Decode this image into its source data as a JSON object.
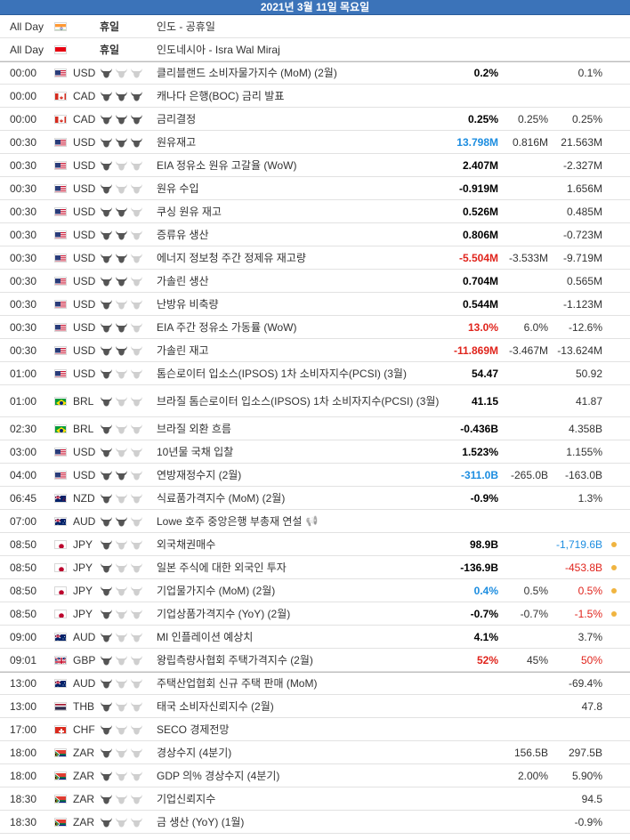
{
  "date_header": "2021년 3월 11일 목요일",
  "colors": {
    "header_bg": "#3b73b9",
    "bull_on": "#555555",
    "bull_off": "#cfcfcf",
    "positive": "#1c8de0",
    "negative": "#e0241c",
    "revision_dot": "#f0b440"
  },
  "rows": [
    {
      "time": "All Day",
      "flag": "IN",
      "holiday": "휴일",
      "event": "인도 - 공휴일"
    },
    {
      "time": "All Day",
      "flag": "ID",
      "holiday": "휴일",
      "event": "인도네시아 - Isra Wal Miraj"
    },
    {
      "time": "00:00",
      "flag": "US",
      "currency": "USD",
      "importance": 1,
      "event": "클리블랜드 소비자물가지수 (MoM) (2월)",
      "actual": "0.2%",
      "forecast": "",
      "previous": "0.1%",
      "sep": true
    },
    {
      "time": "00:00",
      "flag": "CA",
      "currency": "CAD",
      "importance": 3,
      "event": "캐나다 은행(BOC) 금리 발표",
      "actual": "",
      "forecast": "",
      "previous": ""
    },
    {
      "time": "00:00",
      "flag": "CA",
      "currency": "CAD",
      "importance": 3,
      "event": "금리결정",
      "actual": "0.25%",
      "forecast": "0.25%",
      "previous": "0.25%"
    },
    {
      "time": "00:30",
      "flag": "US",
      "currency": "USD",
      "importance": 3,
      "event": "원유재고",
      "actual": "13.798M",
      "actual_color": "positive",
      "forecast": "0.816M",
      "previous": "21.563M"
    },
    {
      "time": "00:30",
      "flag": "US",
      "currency": "USD",
      "importance": 1,
      "event": "EIA 정유소 원유 고갈율 (WoW)",
      "actual": "2.407M",
      "forecast": "",
      "previous": "-2.327M"
    },
    {
      "time": "00:30",
      "flag": "US",
      "currency": "USD",
      "importance": 1,
      "event": "원유 수입",
      "actual": "-0.919M",
      "forecast": "",
      "previous": "1.656M"
    },
    {
      "time": "00:30",
      "flag": "US",
      "currency": "USD",
      "importance": 2,
      "event": "쿠싱 원유 재고",
      "actual": "0.526M",
      "forecast": "",
      "previous": "0.485M"
    },
    {
      "time": "00:30",
      "flag": "US",
      "currency": "USD",
      "importance": 2,
      "event": "증류유 생산",
      "actual": "0.806M",
      "forecast": "",
      "previous": "-0.723M"
    },
    {
      "time": "00:30",
      "flag": "US",
      "currency": "USD",
      "importance": 2,
      "event": "에너지 정보청 주간 정제유 재고량",
      "actual": "-5.504M",
      "actual_color": "negative",
      "forecast": "-3.533M",
      "previous": "-9.719M"
    },
    {
      "time": "00:30",
      "flag": "US",
      "currency": "USD",
      "importance": 2,
      "event": "가솔린 생산",
      "actual": "0.704M",
      "forecast": "",
      "previous": "0.565M"
    },
    {
      "time": "00:30",
      "flag": "US",
      "currency": "USD",
      "importance": 1,
      "event": "난방유 비축량",
      "actual": "0.544M",
      "forecast": "",
      "previous": "-1.123M"
    },
    {
      "time": "00:30",
      "flag": "US",
      "currency": "USD",
      "importance": 2,
      "event": "EIA 주간 정유소 가동률 (WoW)",
      "actual": "13.0%",
      "actual_color": "negative",
      "forecast": "6.0%",
      "previous": "-12.6%"
    },
    {
      "time": "00:30",
      "flag": "US",
      "currency": "USD",
      "importance": 2,
      "event": "가솔린 재고",
      "actual": "-11.869M",
      "actual_color": "negative",
      "forecast": "-3.467M",
      "previous": "-13.624M"
    },
    {
      "time": "01:00",
      "flag": "US",
      "currency": "USD",
      "importance": 1,
      "event": "톰슨로이터 입소스(IPSOS) 1차 소비자지수(PCSI) (3월)",
      "actual": "54.47",
      "forecast": "",
      "previous": "50.92"
    },
    {
      "time": "01:00",
      "flag": "BR",
      "currency": "BRL",
      "importance": 1,
      "event": "브라질 톰슨로이터 입소스(IPSOS) 1차 소비자지수(PCSI) (3월)",
      "actual": "41.15",
      "forecast": "",
      "previous": "41.87",
      "tall": true
    },
    {
      "time": "02:30",
      "flag": "BR",
      "currency": "BRL",
      "importance": 1,
      "event": "브라질 외환 흐름",
      "actual": "-0.436B",
      "forecast": "",
      "previous": "4.358B"
    },
    {
      "time": "03:00",
      "flag": "US",
      "currency": "USD",
      "importance": 1,
      "event": "10년물 국채 입찰",
      "actual": "1.523%",
      "forecast": "",
      "previous": "1.155%"
    },
    {
      "time": "04:00",
      "flag": "US",
      "currency": "USD",
      "importance": 2,
      "event": "연방재정수지 (2월)",
      "actual": "-311.0B",
      "actual_color": "positive",
      "forecast": "-265.0B",
      "previous": "-163.0B"
    },
    {
      "time": "06:45",
      "flag": "NZ",
      "currency": "NZD",
      "importance": 1,
      "event": "식료품가격지수 (MoM) (2월)",
      "actual": "-0.9%",
      "forecast": "",
      "previous": "1.3%"
    },
    {
      "time": "07:00",
      "flag": "AU",
      "currency": "AUD",
      "importance": 2,
      "event": "Lowe 호주 중앙은행 부총재 연설",
      "speech": true,
      "actual": "",
      "forecast": "",
      "previous": ""
    },
    {
      "time": "08:50",
      "flag": "JP",
      "currency": "JPY",
      "importance": 1,
      "event": "외국채권매수",
      "actual": "98.9B",
      "forecast": "",
      "previous": "-1,719.6B",
      "previous_color": "positive",
      "revised": true
    },
    {
      "time": "08:50",
      "flag": "JP",
      "currency": "JPY",
      "importance": 1,
      "event": "일본 주식에 대한 외국인 투자",
      "actual": "-136.9B",
      "forecast": "",
      "previous": "-453.8B",
      "previous_color": "negative",
      "revised": true
    },
    {
      "time": "08:50",
      "flag": "JP",
      "currency": "JPY",
      "importance": 1,
      "event": "기업물가지수 (MoM) (2월)",
      "actual": "0.4%",
      "actual_color": "positive",
      "forecast": "0.5%",
      "previous": "0.5%",
      "previous_color": "negative",
      "revised": true
    },
    {
      "time": "08:50",
      "flag": "JP",
      "currency": "JPY",
      "importance": 1,
      "event": "기업상품가격지수 (YoY) (2월)",
      "actual": "-0.7%",
      "forecast": "-0.7%",
      "previous": "-1.5%",
      "previous_color": "negative",
      "revised": true
    },
    {
      "time": "09:00",
      "flag": "AU",
      "currency": "AUD",
      "importance": 1,
      "event": "MI 인플레이션 예상치",
      "actual": "4.1%",
      "forecast": "",
      "previous": "3.7%"
    },
    {
      "time": "09:01",
      "flag": "GB",
      "currency": "GBP",
      "importance": 1,
      "event": "왕립측량사협회 주택가격지수 (2월)",
      "actual": "52%",
      "actual_color": "negative",
      "forecast": "45%",
      "previous": "50%",
      "previous_color": "negative"
    },
    {
      "time": "13:00",
      "flag": "AU",
      "currency": "AUD",
      "importance": 1,
      "event": "주택산업협회 신규 주택 판매 (MoM)",
      "actual": "",
      "forecast": "",
      "previous": "-69.4%",
      "sep": true
    },
    {
      "time": "13:00",
      "flag": "TH",
      "currency": "THB",
      "importance": 1,
      "event": "태국 소비자신뢰지수 (2월)",
      "actual": "",
      "forecast": "",
      "previous": "47.8"
    },
    {
      "time": "17:00",
      "flag": "CH",
      "currency": "CHF",
      "importance": 1,
      "event": "SECO 경제전망",
      "actual": "",
      "forecast": "",
      "previous": ""
    },
    {
      "time": "18:00",
      "flag": "ZA",
      "currency": "ZAR",
      "importance": 1,
      "event": "경상수지 (4분기)",
      "actual": "",
      "forecast": "156.5B",
      "previous": "297.5B"
    },
    {
      "time": "18:00",
      "flag": "ZA",
      "currency": "ZAR",
      "importance": 1,
      "event": "GDP 의% 경상수지 (4분기)",
      "actual": "",
      "forecast": "2.00%",
      "previous": "5.90%"
    },
    {
      "time": "18:30",
      "flag": "ZA",
      "currency": "ZAR",
      "importance": 1,
      "event": "기업신뢰지수",
      "actual": "",
      "forecast": "",
      "previous": "94.5"
    },
    {
      "time": "18:30",
      "flag": "ZA",
      "currency": "ZAR",
      "importance": 1,
      "event": "금 생산 (YoY) (1월)",
      "actual": "",
      "forecast": "",
      "previous": "-0.9%"
    }
  ]
}
